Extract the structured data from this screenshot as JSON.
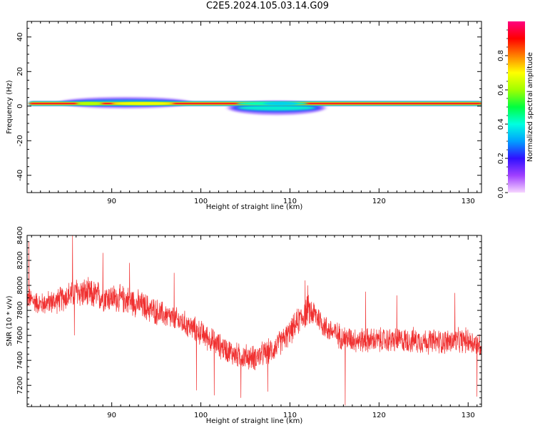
{
  "figure_title": "C2E5.2024.105.03.14.G09",
  "chart_data": [
    {
      "type": "heatmap",
      "xlabel": "Height of straight line (km)",
      "ylabel": "Frequency (Hz)",
      "xlim": [
        80.5,
        131.5
      ],
      "ylim": [
        -50,
        49
      ],
      "xticks": [
        90,
        100,
        110,
        120,
        130
      ],
      "yticks": [
        -40,
        -20,
        0,
        20,
        40
      ],
      "colorbar": {
        "label": "Normalized spectral amplitude",
        "range": [
          0,
          1
        ],
        "ticks": [
          "0.0",
          "0.2",
          "0.4",
          "0.6",
          "0.8"
        ],
        "colors": [
          "#f7d6ff",
          "#a040ff",
          "#3010ff",
          "#00a0ff",
          "#00ffe0",
          "#00ff40",
          "#a0ff00",
          "#ffff00",
          "#ff8000",
          "#ff0000",
          "#ff0080"
        ]
      },
      "features": [
        {
          "x_range": [
            80.5,
            131.5
          ],
          "center_hz": 1.5,
          "peak_amplitude": 0.95
        },
        {
          "x_range": [
            84,
            99
          ],
          "center_hz": 2,
          "peak_amplitude": 0.55
        },
        {
          "x_range": [
            103,
            114
          ],
          "center_hz": -1,
          "peak_amplitude": 0.5
        }
      ]
    },
    {
      "type": "line",
      "xlabel": "Height of straight line (km)",
      "ylabel": "SNR (10 * v/v)",
      "xlim": [
        80.5,
        131.5
      ],
      "ylim": [
        7030,
        8400
      ],
      "xticks": [
        90,
        100,
        110,
        120,
        130
      ],
      "yticks": [
        7200,
        7400,
        7600,
        7800,
        8000,
        8200,
        8400
      ],
      "series": [
        {
          "color": "#f03030",
          "x": [
            80.5,
            82,
            84,
            86,
            88,
            90,
            92,
            94,
            96,
            98,
            100,
            102,
            104,
            106,
            108,
            110,
            111,
            112,
            113,
            114,
            116,
            118,
            120,
            122,
            124,
            126,
            128,
            130,
            131.5
          ],
          "y": [
            7900,
            7850,
            7880,
            7950,
            7920,
            7900,
            7880,
            7820,
            7760,
            7700,
            7620,
            7520,
            7440,
            7420,
            7480,
            7620,
            7720,
            7800,
            7760,
            7660,
            7580,
            7560,
            7560,
            7560,
            7560,
            7550,
            7550,
            7560,
            7520
          ],
          "noise_band": [
            80,
            80,
            90,
            110,
            110,
            100,
            100,
            100,
            90,
            90,
            90,
            90,
            90,
            90,
            90,
            90,
            100,
            110,
            100,
            90,
            90,
            90,
            90,
            90,
            90,
            90,
            90,
            90,
            90
          ],
          "spikes": [
            {
              "x": 80.7,
              "y": 8350
            },
            {
              "x": 85.6,
              "y": 8400
            },
            {
              "x": 85.8,
              "y": 7600
            },
            {
              "x": 89,
              "y": 8260
            },
            {
              "x": 92,
              "y": 8180
            },
            {
              "x": 97,
              "y": 8100
            },
            {
              "x": 99.5,
              "y": 7160
            },
            {
              "x": 101.5,
              "y": 7120
            },
            {
              "x": 104.5,
              "y": 7100
            },
            {
              "x": 107.5,
              "y": 7150
            },
            {
              "x": 111.7,
              "y": 8040
            },
            {
              "x": 112,
              "y": 8000
            },
            {
              "x": 116.2,
              "y": 7040
            },
            {
              "x": 118.5,
              "y": 7950
            },
            {
              "x": 122,
              "y": 7920
            },
            {
              "x": 128.5,
              "y": 7940
            },
            {
              "x": 131,
              "y": 7110
            }
          ]
        }
      ]
    }
  ]
}
